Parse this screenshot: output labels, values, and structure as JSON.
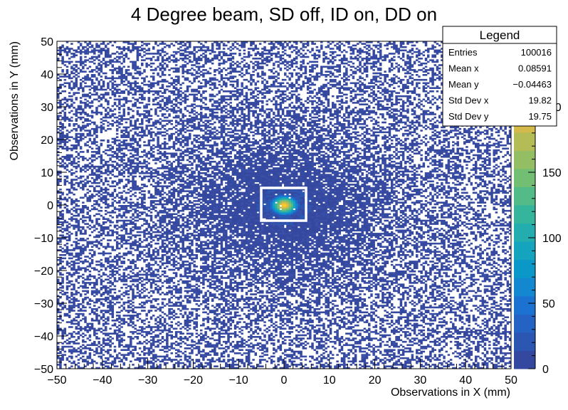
{
  "chart_data": {
    "type": "heatmap",
    "title": "4 Degree beam, SD off, ID on, DD on",
    "xlabel": "Observations in X (mm)",
    "ylabel": "Observations in Y (mm)",
    "xlim": [
      -50,
      50
    ],
    "ylim": [
      -50,
      50
    ],
    "x_ticks": [
      -50,
      -40,
      -30,
      -20,
      -10,
      0,
      10,
      20,
      30,
      40,
      50
    ],
    "y_ticks": [
      -50,
      -40,
      -30,
      -20,
      -10,
      0,
      10,
      20,
      30,
      40,
      50
    ],
    "colorbar": {
      "range": [
        0,
        250
      ],
      "ticks": [
        0,
        50,
        100,
        150,
        200
      ],
      "colors": [
        "#35489f",
        "#2b57b2",
        "#2463c4",
        "#1c72d0",
        "#1387cf",
        "#0a98c9",
        "#14a4bd",
        "#24adaf",
        "#36b59d",
        "#52bb88",
        "#72bf73",
        "#93be63",
        "#b4bc56",
        "#d4b94b",
        "#eab93c",
        "#f8c42f",
        "#fbd522",
        "#f9e015"
      ]
    },
    "distribution": {
      "bins_x": 200,
      "bins_y": 200,
      "center": [
        0.08591,
        -0.04463
      ],
      "std": [
        19.82,
        19.75
      ]
    },
    "annotations": {
      "box": {
        "x": [
          -5,
          5
        ],
        "y": [
          -3.5,
          5
        ],
        "color": "#ffffff"
      }
    },
    "legend": {
      "title": "Legend",
      "position": "top-right",
      "rows": [
        {
          "label": "Entries",
          "value": "100016"
        },
        {
          "label": "Mean x",
          "value": "0.08591"
        },
        {
          "label": "Mean y",
          "value": "−0.04463"
        },
        {
          "label": "Std Dev x",
          "value": "19.82"
        },
        {
          "label": "Std Dev y",
          "value": "19.75"
        }
      ]
    }
  }
}
